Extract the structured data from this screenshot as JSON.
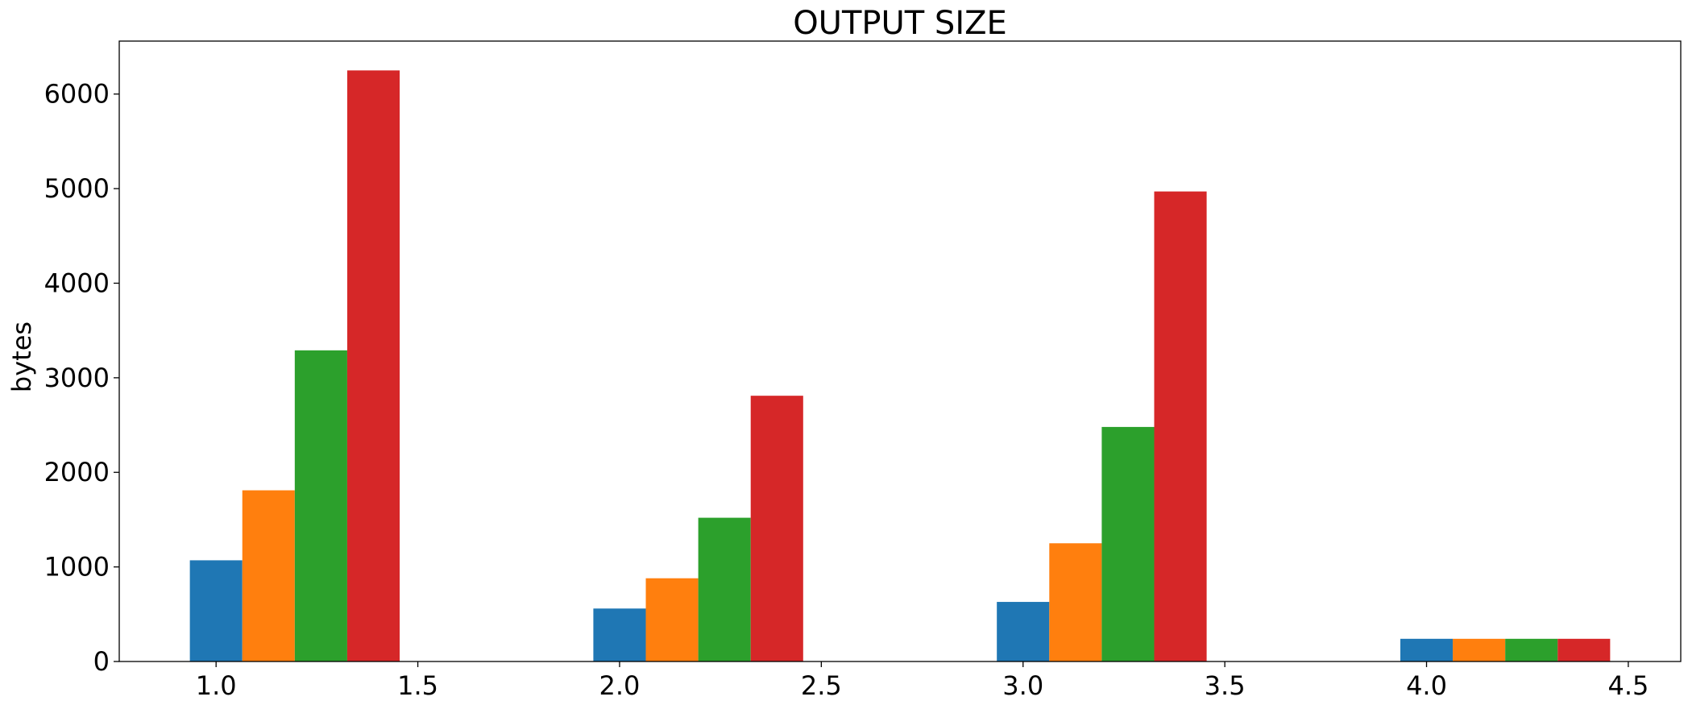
{
  "chart_data": {
    "type": "bar",
    "title": "OUTPUT SIZE",
    "xlabel": "",
    "ylabel": "bytes",
    "xlim": [
      0.76,
      4.63
    ],
    "ylim": [
      0,
      6560
    ],
    "x_ticks": [
      "1.0",
      "1.5",
      "2.0",
      "2.5",
      "3.0",
      "3.5",
      "4.0",
      "4.5"
    ],
    "x_tick_values": [
      1.0,
      1.5,
      2.0,
      2.5,
      3.0,
      3.5,
      4.0,
      4.5
    ],
    "y_ticks": [
      "0",
      "1000",
      "2000",
      "3000",
      "4000",
      "5000",
      "6000"
    ],
    "y_tick_values": [
      0,
      1000,
      2000,
      3000,
      4000,
      5000,
      6000
    ],
    "groups": [
      1,
      2,
      3,
      4
    ],
    "bar_width": 0.13,
    "grid": false,
    "series": [
      {
        "color": "#1f77b4",
        "values": [
          1070,
          560,
          630,
          240
        ]
      },
      {
        "color": "#ff7f0e",
        "values": [
          1810,
          880,
          1250,
          240
        ]
      },
      {
        "color": "#2ca02c",
        "values": [
          3290,
          1520,
          2480,
          240
        ]
      },
      {
        "color": "#d62728",
        "values": [
          6250,
          2810,
          4970,
          240
        ]
      }
    ]
  }
}
